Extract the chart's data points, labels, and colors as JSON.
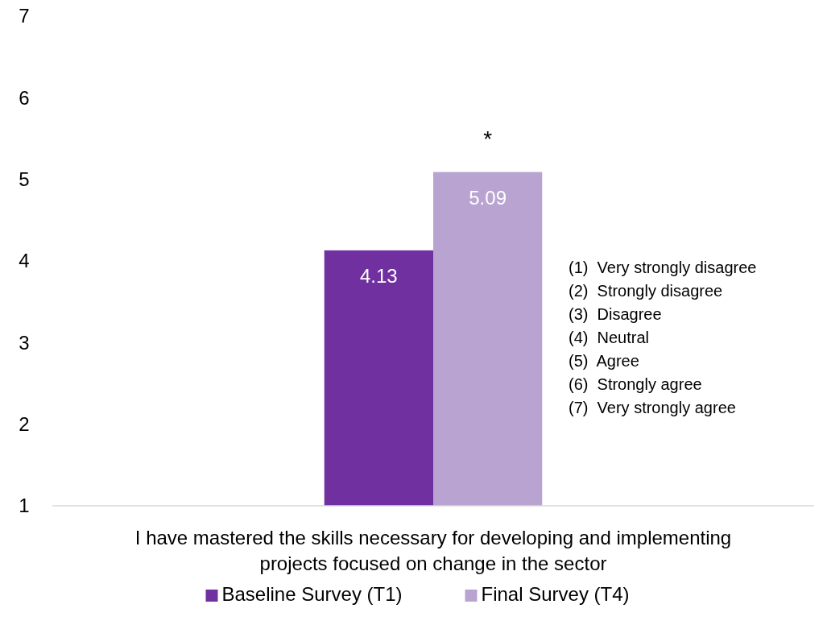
{
  "chart_data": {
    "type": "bar",
    "categories": [
      "I have mastered the skills necessary for developing and implementing projects focused on change in the sector"
    ],
    "series": [
      {
        "name": "Baseline Survey (T1)",
        "color": "#7030a0",
        "values": [
          4.13
        ]
      },
      {
        "name": "Final Survey (T4)",
        "color": "#b9a3d0",
        "values": [
          5.09
        ]
      }
    ],
    "ylim": [
      1,
      7
    ],
    "yticks": [
      1,
      2,
      3,
      4,
      5,
      6,
      7
    ],
    "grid": false,
    "legend": "bottom",
    "data_labels": true,
    "annotations": [
      "*",
      "(1)  Very strongly disagree",
      "(2)  Strongly disagree",
      "(3)  Disagree",
      "(4)  Neutral",
      "(5)  Agree",
      "(6)  Strongly agree",
      "(7)  Very strongly agree"
    ]
  }
}
